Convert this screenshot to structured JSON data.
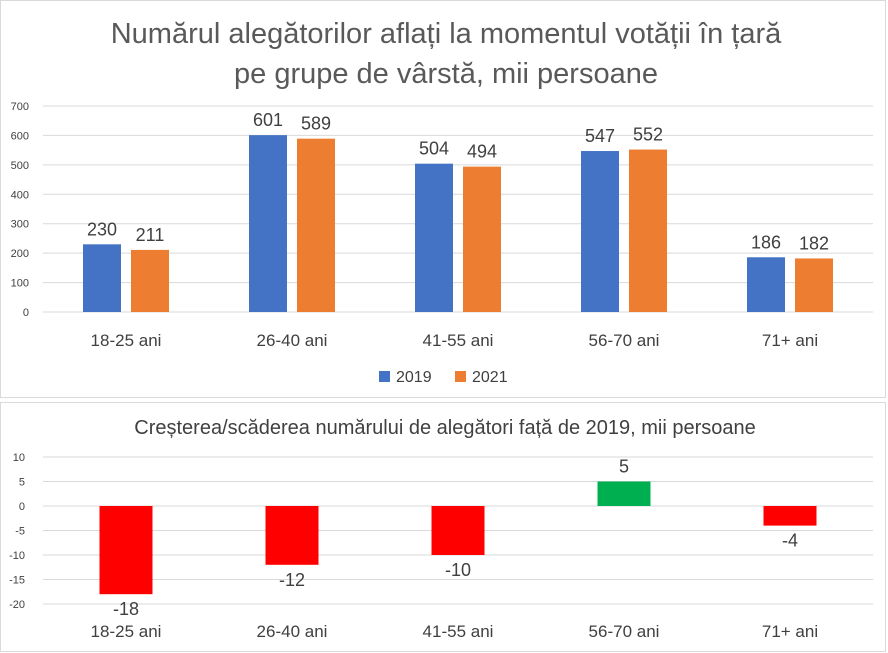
{
  "chart_data": [
    {
      "type": "bar",
      "title_lines": [
        "Numărul alegătorilor aflați la momentul votății în țară",
        "pe grupe de vârstă, mii persoane"
      ],
      "categories": [
        "18-25 ani",
        "26-40 ani",
        "41-55 ani",
        "56-70 ani",
        "71+ ani"
      ],
      "series": [
        {
          "name": "2019",
          "color": "#4472c4",
          "values": [
            230,
            601,
            504,
            547,
            186
          ]
        },
        {
          "name": "2021",
          "color": "#ed7d31",
          "values": [
            211,
            589,
            494,
            552,
            182
          ]
        }
      ],
      "ylim": [
        0,
        700
      ],
      "yticks": [
        0,
        100,
        200,
        300,
        400,
        500,
        600,
        700
      ],
      "legend": "bottom"
    },
    {
      "type": "bar",
      "title": "Creșterea/scăderea numărului de alegători față de 2019, mii persoane",
      "categories": [
        "18-25 ani",
        "26-40 ani",
        "41-55 ani",
        "56-70 ani",
        "71+ ani"
      ],
      "values": [
        -18,
        -12,
        -10,
        5,
        -4
      ],
      "colors": {
        "negative": "#ff0000",
        "positive": "#00b050"
      },
      "ylim": [
        -20,
        10
      ],
      "yticks": [
        10,
        5,
        0,
        -5,
        -10,
        -15,
        -20
      ]
    }
  ]
}
